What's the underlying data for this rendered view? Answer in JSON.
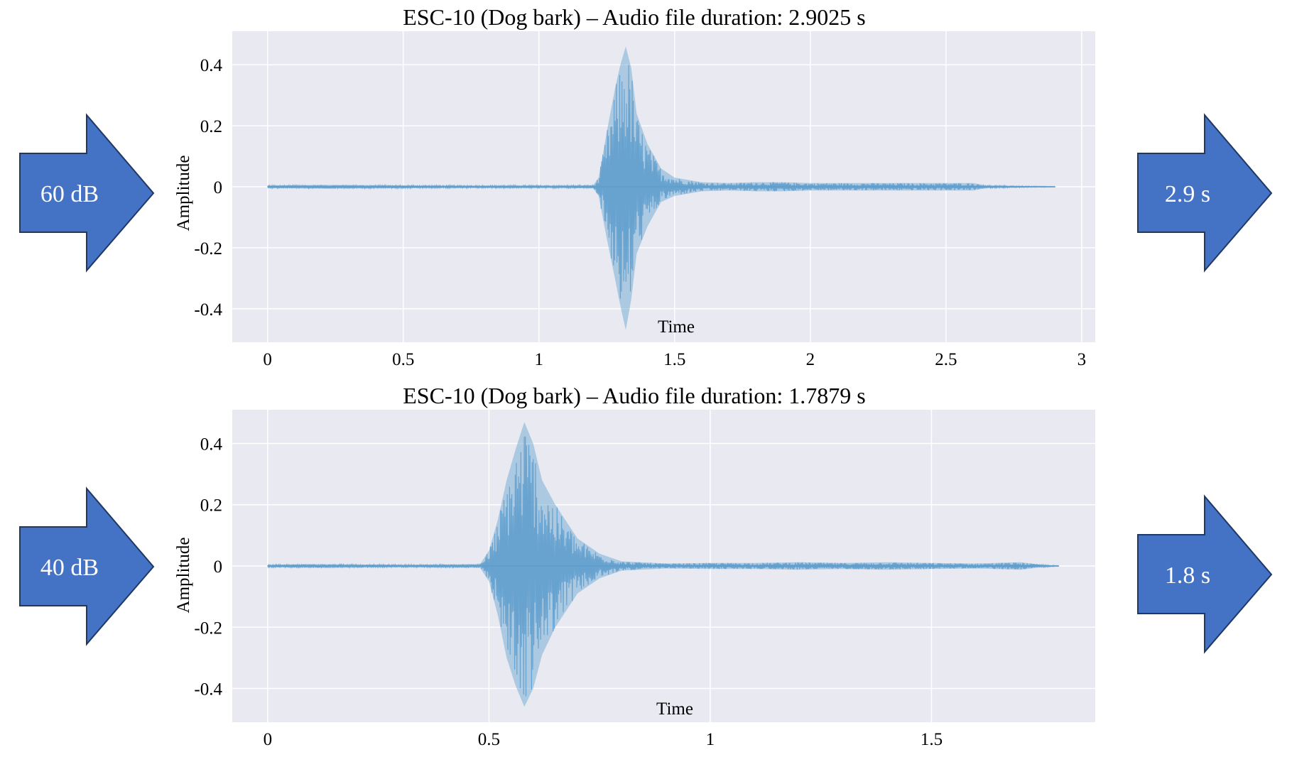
{
  "colors": {
    "plot_bg": "#e8e9f1",
    "grid": "#ffffff",
    "waveform": "#5c9ccc",
    "waveform_env": "#7aaed6",
    "arrow_fill": "#4472c4",
    "arrow_stroke": "#1f3864",
    "arrow_text": "#ffffff",
    "text": "#000000"
  },
  "arrows": {
    "top_left": "60 dB",
    "top_right": "2.9 s",
    "bottom_left": "40 dB",
    "bottom_right": "1.8 s"
  },
  "chart_data": [
    {
      "type": "line",
      "title": "ESC-10 (Dog bark) – Audio file duration: 2.9025 s",
      "xlabel": "Time",
      "ylabel": "Amplitude",
      "duration_s": 2.9025,
      "xlim": [
        -0.13,
        3.05
      ],
      "ylim": [
        -0.51,
        0.51
      ],
      "xticks": [
        0,
        0.5,
        1,
        1.5,
        2,
        2.5,
        3
      ],
      "xtick_labels": [
        "0",
        "0.5",
        "1",
        "1.5",
        "2",
        "2.5",
        "3"
      ],
      "yticks": [
        0.4,
        0.2,
        0,
        -0.2,
        -0.4
      ],
      "ytick_labels": [
        "0.4",
        "0.2",
        "0",
        "-0.2",
        "-0.4"
      ],
      "grid": true,
      "series": [
        {
          "x": [
            0,
            0.2,
            0.4,
            0.6,
            0.8,
            1.0,
            1.1,
            1.2,
            1.22,
            1.25,
            1.28,
            1.3,
            1.32,
            1.34,
            1.36,
            1.4,
            1.45,
            1.5,
            1.6,
            1.7,
            1.8,
            1.9,
            2.0,
            2.2,
            2.4,
            2.6,
            2.65,
            2.9025
          ],
          "upper": [
            0.004,
            0.006,
            0.005,
            0.004,
            0.004,
            0.004,
            0.004,
            0.005,
            0.03,
            0.18,
            0.32,
            0.4,
            0.46,
            0.39,
            0.24,
            0.14,
            0.06,
            0.03,
            0.015,
            0.012,
            0.015,
            0.015,
            0.012,
            0.012,
            0.012,
            0.012,
            0.004,
            0.001
          ],
          "lower": [
            -0.004,
            -0.006,
            -0.005,
            -0.004,
            -0.004,
            -0.004,
            -0.004,
            -0.005,
            -0.03,
            -0.17,
            -0.3,
            -0.39,
            -0.47,
            -0.37,
            -0.22,
            -0.13,
            -0.05,
            -0.03,
            -0.015,
            -0.012,
            -0.015,
            -0.015,
            -0.012,
            -0.012,
            -0.012,
            -0.012,
            -0.004,
            -0.001
          ]
        }
      ]
    },
    {
      "type": "line",
      "title": "ESC-10 (Dog bark) – Audio file duration: 1.7879 s",
      "xlabel": "Time",
      "ylabel": "Amplitude",
      "duration_s": 1.7879,
      "xlim": [
        -0.08,
        1.87
      ],
      "ylim": [
        -0.51,
        0.51
      ],
      "xticks": [
        0,
        0.5,
        1,
        1.5
      ],
      "xtick_labels": [
        "0",
        "0.5",
        "1",
        "1.5"
      ],
      "yticks": [
        0.4,
        0.2,
        0,
        -0.2,
        -0.4
      ],
      "ytick_labels": [
        "0.4",
        "0.2",
        "0",
        "-0.2",
        "-0.4"
      ],
      "grid": true,
      "series": [
        {
          "x": [
            0,
            0.1,
            0.2,
            0.3,
            0.4,
            0.48,
            0.5,
            0.52,
            0.54,
            0.56,
            0.58,
            0.6,
            0.62,
            0.65,
            0.7,
            0.75,
            0.8,
            0.9,
            1.0,
            1.1,
            1.2,
            1.3,
            1.4,
            1.5,
            1.6,
            1.7,
            1.75,
            1.7879
          ],
          "upper": [
            0.004,
            0.006,
            0.005,
            0.004,
            0.005,
            0.006,
            0.05,
            0.15,
            0.28,
            0.38,
            0.47,
            0.4,
            0.28,
            0.2,
            0.09,
            0.04,
            0.015,
            0.008,
            0.01,
            0.01,
            0.012,
            0.01,
            0.012,
            0.01,
            0.008,
            0.012,
            0.004,
            0.001
          ],
          "lower": [
            -0.004,
            -0.006,
            -0.005,
            -0.004,
            -0.005,
            -0.006,
            -0.05,
            -0.16,
            -0.3,
            -0.39,
            -0.46,
            -0.4,
            -0.29,
            -0.2,
            -0.09,
            -0.04,
            -0.015,
            -0.008,
            -0.01,
            -0.01,
            -0.012,
            -0.01,
            -0.012,
            -0.01,
            -0.008,
            -0.012,
            -0.004,
            -0.001
          ]
        }
      ]
    }
  ]
}
